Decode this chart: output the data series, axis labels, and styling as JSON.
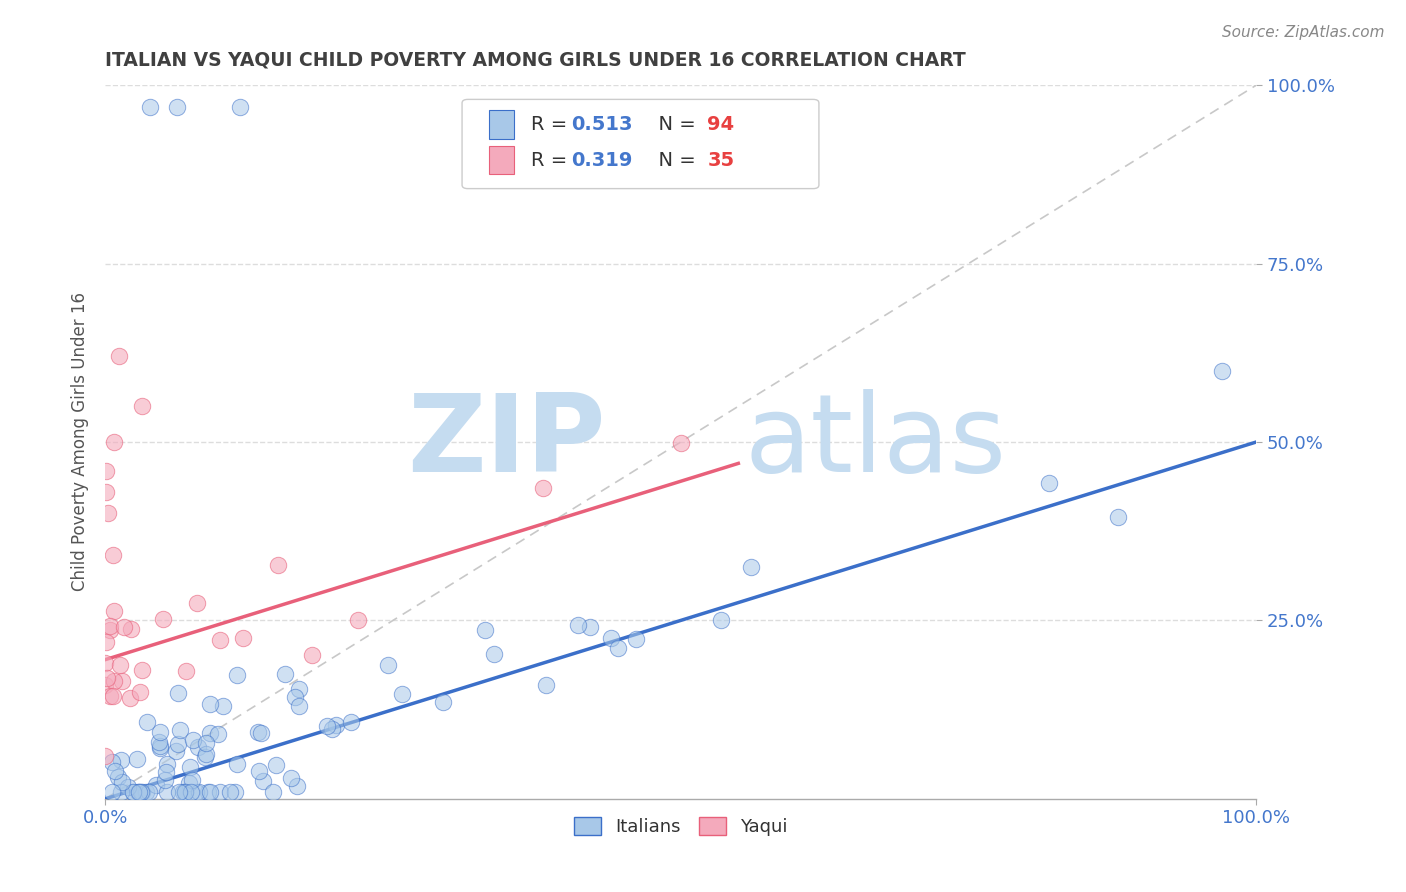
{
  "title": "ITALIAN VS YAQUI CHILD POVERTY AMONG GIRLS UNDER 16 CORRELATION CHART",
  "source": "Source: ZipAtlas.com",
  "ylabel": "Child Poverty Among Girls Under 16",
  "xlim": [
    0,
    1.0
  ],
  "ylim": [
    0,
    1.0
  ],
  "xtick_labels": [
    "0.0%",
    "100.0%"
  ],
  "xtick_vals": [
    0,
    1.0
  ],
  "ytick_labels": [
    "25.0%",
    "50.0%",
    "75.0%",
    "100.0%"
  ],
  "ytick_vals": [
    0.25,
    0.5,
    0.75,
    1.0
  ],
  "italian_color": "#A8C8E8",
  "yaqui_color": "#F4AABC",
  "italian_R": 0.513,
  "italian_N": 94,
  "yaqui_R": 0.319,
  "yaqui_N": 35,
  "italian_line_color": "#3B6FC9",
  "yaqui_line_color": "#E8607A",
  "ref_line_color": "#C8C8C8",
  "watermark_zip": "ZIP",
  "watermark_atlas": "atlas",
  "watermark_color": "#C5DCF0",
  "background_color": "#FFFFFF",
  "title_color": "#404040",
  "tick_label_color": "#4477CC",
  "N_color": "#E84040",
  "legend_box_color": "#E8E8E8",
  "italian_line_intercept": 0.0,
  "italian_line_slope": 0.5,
  "yaqui_line_intercept": 0.195,
  "yaqui_line_slope": 0.5,
  "yaqui_line_xend": 0.55
}
